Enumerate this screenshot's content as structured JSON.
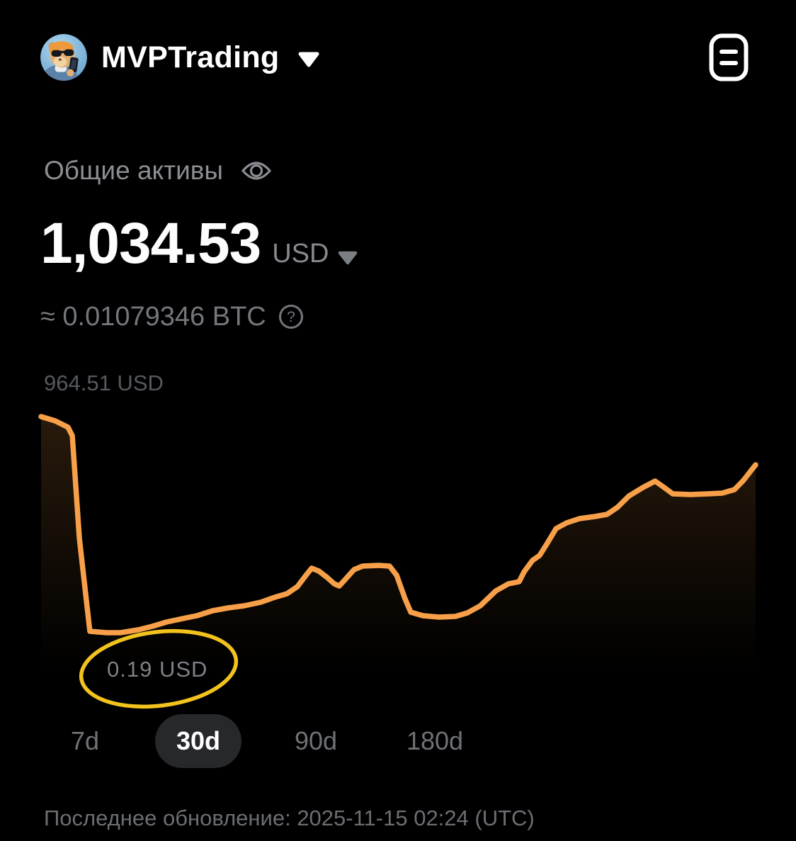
{
  "header": {
    "title": "MVPTrading",
    "avatar_name": "hamster-with-sunglasses-avatar"
  },
  "icons": {
    "title_caret": "chevron-down",
    "menu": "list-panel-icon",
    "eye": "eye-visibility-icon",
    "currency_caret": "chevron-down",
    "question_glyph": "?"
  },
  "assets": {
    "section_label": "Общие активы",
    "balance": "1,034.53",
    "currency": "USD",
    "btc_equivalent": "≈ 0.01079346 BTC"
  },
  "chart": {
    "max_label": "964.51 USD",
    "min_label": "0.19 USD"
  },
  "chart_data": {
    "type": "line",
    "x_label": "",
    "y_label": "",
    "x_unit": "days",
    "x_range": [
      0,
      30
    ],
    "y_unit": "USD",
    "ylim": [
      0.19,
      964.51
    ],
    "grid": false,
    "legend": false,
    "max_point_label": "964.51 USD",
    "min_point_label": "0.19 USD",
    "annotation": {
      "shape": "hand-drawn-ellipse",
      "around": "0.19 USD min label",
      "color": "#f2c31d"
    },
    "series": [
      {
        "name": "total-assets-usd",
        "x": [
          0,
          0.59,
          1.13,
          1.31,
          1.61,
          2.05,
          2.74,
          3.33,
          4.07,
          4.67,
          5.26,
          5.95,
          6.54,
          7.2,
          7.85,
          8.53,
          9.22,
          9.81,
          10.32,
          10.76,
          11.12,
          11.36,
          11.66,
          12.01,
          12.31,
          12.52,
          12.79,
          13.14,
          13.5,
          14.18,
          14.63,
          14.93,
          15.28,
          15.52,
          16.03,
          16.71,
          17.4,
          17.9,
          18.44,
          19.09,
          19.62,
          20.07,
          20.28,
          20.63,
          20.93,
          21.23,
          21.62,
          22.06,
          22.6,
          23.25,
          23.76,
          24.2,
          24.68,
          25.27,
          25.78,
          26.16,
          26.52,
          27.26,
          28.01,
          28.6,
          29.11,
          29.49,
          29.79,
          30
        ],
        "y": [
          964.5,
          945.6,
          917.1,
          879.2,
          420.7,
          6.5,
          0.19,
          0.19,
          12.8,
          28.6,
          47.6,
          63.4,
          76.1,
          98.2,
          110.8,
          120.3,
          136.1,
          158.3,
          174.1,
          205.7,
          256.3,
          287.9,
          275.3,
          246.8,
          218.4,
          208.9,
          240.5,
          281.6,
          297.4,
          300.6,
          297.4,
          256.3,
          152,
          91.9,
          76.1,
          69.7,
          72.9,
          88.7,
          120.3,
          186.7,
          218.4,
          227.9,
          272.1,
          322.7,
          344.8,
          395.4,
          465,
          490.3,
          509.2,
          518.7,
          528.2,
          559.8,
          610.4,
          648.3,
          676.8,
          648.3,
          619.8,
          616.7,
          619.8,
          622.9,
          638.8,
          679.9,
          721,
          749.5
        ]
      }
    ]
  },
  "range_tabs": [
    {
      "label": "7d",
      "selected": false
    },
    {
      "label": "30d",
      "selected": true
    },
    {
      "label": "90d",
      "selected": false
    },
    {
      "label": "180d",
      "selected": false
    }
  ],
  "footer": {
    "last_update": "Последнее обновление: 2025-11-15 02:24 (UTC)"
  },
  "colors": {
    "background": "#000000",
    "accent_orange": "#f7a049",
    "annotation_yellow": "#f2c31d",
    "selected_pill_bg": "#26282c"
  }
}
